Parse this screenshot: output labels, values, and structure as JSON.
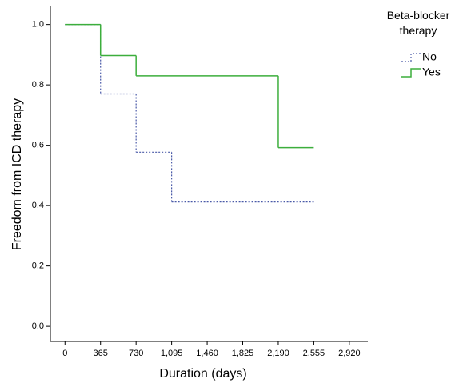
{
  "chart_data": {
    "type": "step",
    "x_label": "Duration (days)",
    "y_label": "Freedom from ICD therapy",
    "legend_title": "Beta-blocker therapy",
    "xlim": [
      -150,
      3110
    ],
    "ylim": [
      -0.05,
      1.06
    ],
    "xticks": [
      0,
      365,
      730,
      {
        "value": 1095,
        "label": "1,095"
      },
      {
        "value": 1460,
        "label": "1,460"
      },
      {
        "value": 1825,
        "label": "1,825"
      },
      {
        "value": 2190,
        "label": "2,190"
      },
      {
        "value": 2555,
        "label": "2,555"
      },
      {
        "value": 2920,
        "label": "2,920"
      }
    ],
    "yticks": [
      {
        "value": 0,
        "label": "0.0"
      },
      0.2,
      0.4,
      0.6,
      0.8,
      {
        "value": 1,
        "label": "1.0"
      }
    ],
    "series": [
      {
        "name": "No",
        "color": "#4a5aa8",
        "dash": true,
        "x": [
          0,
          365,
          730,
          1095,
          2555
        ],
        "values": [
          1.0,
          0.77,
          0.577,
          0.412,
          0.412
        ]
      },
      {
        "name": "Yes",
        "color": "#3cae3c",
        "dash": false,
        "x": [
          0,
          365,
          730,
          2190,
          2555
        ],
        "values": [
          1.0,
          0.897,
          0.83,
          0.592,
          0.592
        ]
      }
    ]
  }
}
